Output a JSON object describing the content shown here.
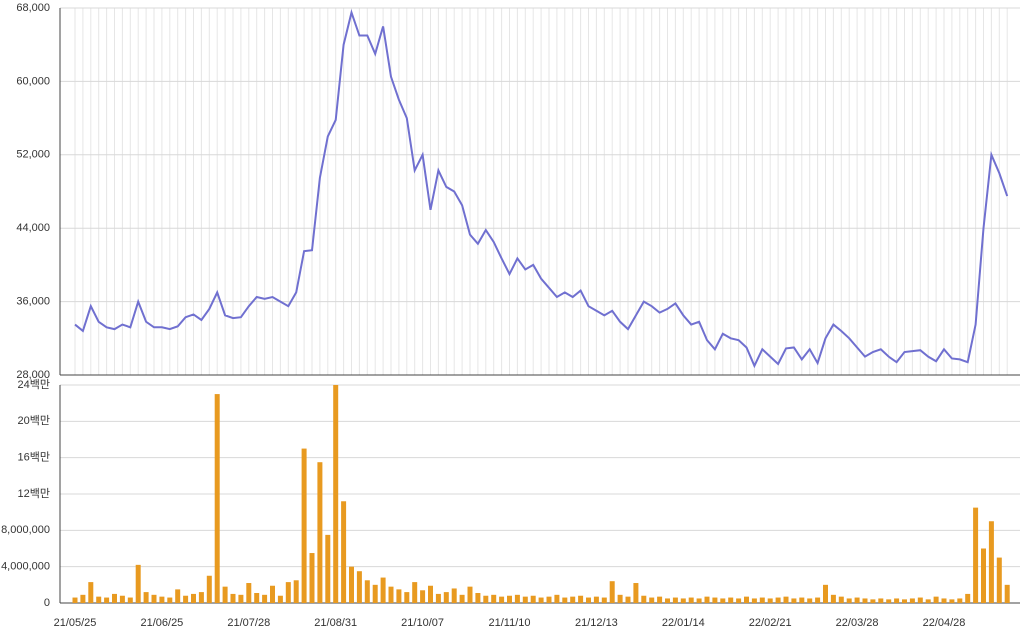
{
  "chart_data": [
    {
      "type": "line",
      "color": "#7070d0",
      "grid": true,
      "ylim": [
        28000,
        68000
      ],
      "yticks": [
        {
          "value": 28000,
          "label": "28,000"
        },
        {
          "value": 36000,
          "label": "36,000"
        },
        {
          "value": 44000,
          "label": "44,000"
        },
        {
          "value": 52000,
          "label": "52,000"
        },
        {
          "value": 60000,
          "label": "60,000"
        },
        {
          "value": 68000,
          "label": "68,000"
        }
      ],
      "values": [
        33500,
        32800,
        35500,
        33800,
        33200,
        33000,
        33500,
        33200,
        36000,
        33800,
        33200,
        33200,
        33000,
        33300,
        34300,
        34600,
        34000,
        35200,
        37000,
        34500,
        34200,
        34300,
        35500,
        36500,
        36300,
        36500,
        36000,
        35500,
        37000,
        41500,
        41600,
        49500,
        54000,
        55800,
        64000,
        67500,
        65000,
        65000,
        63000,
        66000,
        60500,
        58000,
        56000,
        50300,
        52000,
        46000,
        50300,
        48500,
        48000,
        46500,
        43300,
        42300,
        43800,
        42500,
        40700,
        39000,
        40700,
        39500,
        40000,
        38500,
        37500,
        36500,
        37000,
        36500,
        37200,
        35500,
        35000,
        34500,
        35000,
        33800,
        33000,
        34500,
        36000,
        35500,
        34800,
        35200,
        35800,
        34500,
        33500,
        33800,
        31800,
        30800,
        32500,
        32000,
        31800,
        31000,
        29000,
        30800,
        30000,
        29200,
        30900,
        31000,
        29700,
        30800,
        29300,
        32000,
        33500,
        32800,
        32000,
        31000,
        30000,
        30500,
        30800,
        30000,
        29400,
        30500,
        30600,
        30700,
        30000,
        29500,
        30800,
        29800,
        29700,
        29400,
        33500,
        44000,
        52000,
        50000,
        47500
      ]
    },
    {
      "type": "bar",
      "color": "#e89a20",
      "grid": true,
      "ylim": [
        0,
        24000000
      ],
      "yticks": [
        0,
        {
          "value": 4000000,
          "label": "4,000,000"
        },
        {
          "value": 8000000,
          "label": "8,000,000"
        },
        {
          "value": 12000000,
          "label": "12백만"
        },
        {
          "value": 16000000,
          "label": "16백만"
        },
        {
          "value": 20000000,
          "label": "20백만"
        },
        {
          "value": 24000000,
          "label": "24백만"
        }
      ],
      "categories": [
        "21/05/25",
        null,
        null,
        null,
        null,
        null,
        null,
        null,
        null,
        null,
        null,
        "21/06/25",
        null,
        null,
        null,
        null,
        null,
        null,
        null,
        null,
        null,
        null,
        "21/07/28",
        null,
        null,
        null,
        null,
        null,
        null,
        null,
        null,
        null,
        null,
        "21/08/31",
        null,
        null,
        null,
        null,
        null,
        null,
        null,
        null,
        null,
        null,
        "21/10/07",
        null,
        null,
        null,
        null,
        null,
        null,
        null,
        null,
        null,
        null,
        "21/11/10",
        null,
        null,
        null,
        null,
        null,
        null,
        null,
        null,
        null,
        null,
        "21/12/13",
        null,
        null,
        null,
        null,
        null,
        null,
        null,
        null,
        null,
        null,
        "22/01/14",
        null,
        null,
        null,
        null,
        null,
        null,
        null,
        null,
        null,
        null,
        "22/02/21",
        null,
        null,
        null,
        null,
        null,
        null,
        null,
        null,
        null,
        null,
        "22/03/28",
        null,
        null,
        null,
        null,
        null,
        null,
        null,
        null,
        null,
        null,
        "22/04/28",
        null,
        null,
        null,
        null,
        null,
        null,
        null,
        null
      ],
      "values": [
        600000,
        900000,
        2300000,
        700000,
        600000,
        1000000,
        800000,
        600000,
        4200000,
        1200000,
        900000,
        700000,
        600000,
        1500000,
        800000,
        1000000,
        1200000,
        3000000,
        23000000,
        1800000,
        1000000,
        900000,
        2200000,
        1100000,
        900000,
        1900000,
        800000,
        2300000,
        2500000,
        17000000,
        5500000,
        15500000,
        7500000,
        24000000,
        11200000,
        4000000,
        3500000,
        2500000,
        2000000,
        2800000,
        1800000,
        1500000,
        1200000,
        2300000,
        1400000,
        1900000,
        1000000,
        1200000,
        1600000,
        900000,
        1800000,
        1100000,
        800000,
        900000,
        700000,
        800000,
        900000,
        700000,
        800000,
        600000,
        700000,
        900000,
        600000,
        700000,
        800000,
        600000,
        700000,
        600000,
        2400000,
        900000,
        700000,
        2200000,
        800000,
        600000,
        700000,
        500000,
        600000,
        500000,
        600000,
        500000,
        700000,
        600000,
        500000,
        600000,
        500000,
        700000,
        500000,
        600000,
        500000,
        600000,
        700000,
        500000,
        600000,
        500000,
        600000,
        2000000,
        900000,
        700000,
        500000,
        600000,
        500000,
        400000,
        500000,
        400000,
        500000,
        400000,
        500000,
        600000,
        400000,
        700000,
        500000,
        400000,
        500000,
        1000000,
        10500000,
        6000000,
        9000000,
        5000000,
        2000000
      ]
    }
  ]
}
